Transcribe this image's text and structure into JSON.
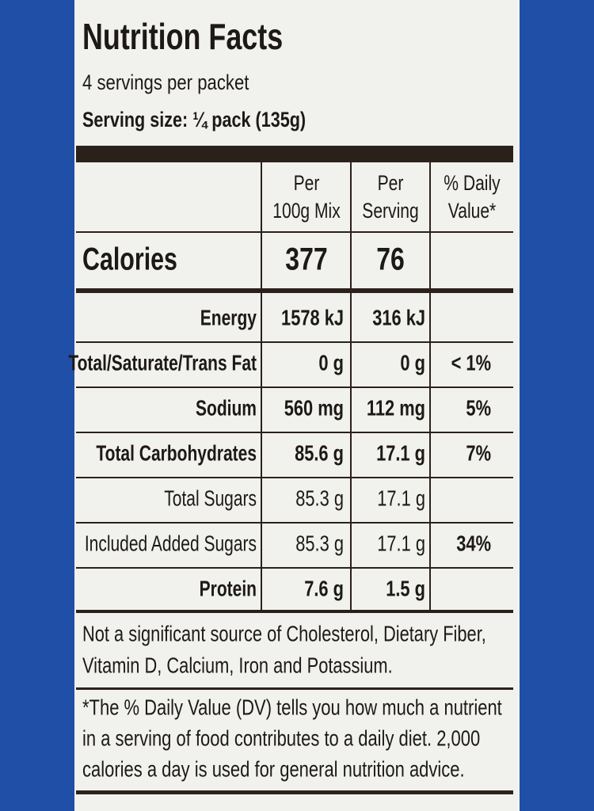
{
  "header": {
    "title": "Nutrition Facts",
    "servings": "4 servings per packet",
    "serving_size": "Serving size: ¼ pack (135g)"
  },
  "table": {
    "columns": [
      [
        "Per",
        "100g Mix"
      ],
      [
        "Per",
        "Serving"
      ],
      [
        "% Daily",
        "Value*"
      ]
    ],
    "calories": {
      "label": "Calories",
      "per_100g": 377,
      "per_serving": 76
    },
    "rows": [
      {
        "label": "Energy",
        "per_100g": "1578 kJ",
        "per_serving": "316 kJ",
        "bold": true
      },
      {
        "label": "Total/Saturate/Trans Fat",
        "per_100g": "0 g",
        "per_serving": "0 g",
        "dv": "< 1%",
        "bold": true
      },
      {
        "label": "Sodium",
        "per_100g": "560 mg",
        "per_serving": "112 mg",
        "dv": "5%",
        "bold": true
      },
      {
        "label": "Total Carbohydrates",
        "per_100g": "85.6 g",
        "per_serving": "17.1 g",
        "dv": "7%",
        "bold": true
      },
      {
        "label": "Total Sugars",
        "per_100g": "85.3 g",
        "per_serving": "17.1 g",
        "bold": false
      },
      {
        "label": "Included Added Sugars",
        "per_100g": "85.3 g",
        "per_serving": "17.1 g",
        "dv": "34%",
        "bold": false
      },
      {
        "label": "Protein",
        "per_100g": "7.6 g",
        "per_serving": "1.5 g",
        "bold": true
      }
    ]
  },
  "footnotes": {
    "not_significant": [
      "Not a significant source of Cholesterol, Dietary Fiber,",
      "Vitamin D, Calcium, Iron and Potassium."
    ],
    "daily_value": [
      "*The % Daily Value (DV) tells you how much a nutrient",
      "in a serving of food contributes to a daily diet. 2,000",
      "calories a day is used for general nutrition advice."
    ]
  }
}
